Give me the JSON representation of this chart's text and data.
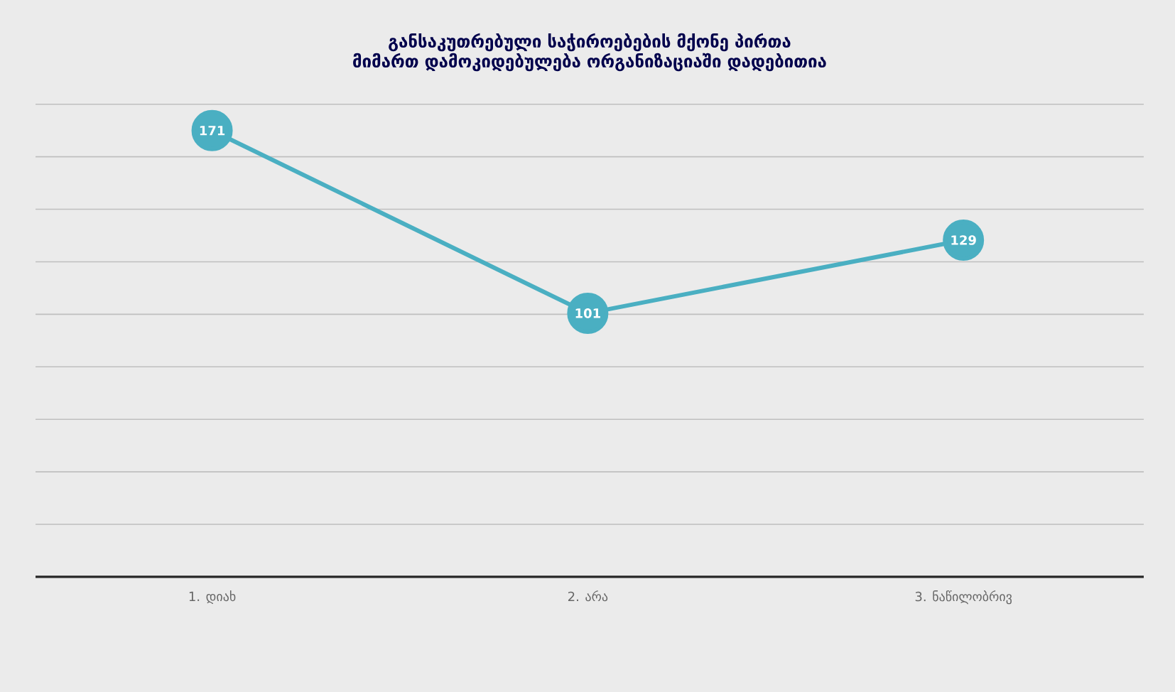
{
  "chart_data": {
    "type": "line",
    "title": "განსაკუთრებული საჭიროებების მქონე პირთა მიმართ დამოკიდებულება ორგანიზაციაში დადებითია",
    "categories": [
      "1.    დიახ",
      "2.    არა",
      "3.    ნაწილობრივ"
    ],
    "values": [
      171,
      101,
      129
    ],
    "value_labels": [
      "171",
      "101",
      "129"
    ],
    "color": "#4aafc2",
    "grid": "y",
    "marker": "circle",
    "line_style": "solid",
    "tick_labels": "x"
  }
}
